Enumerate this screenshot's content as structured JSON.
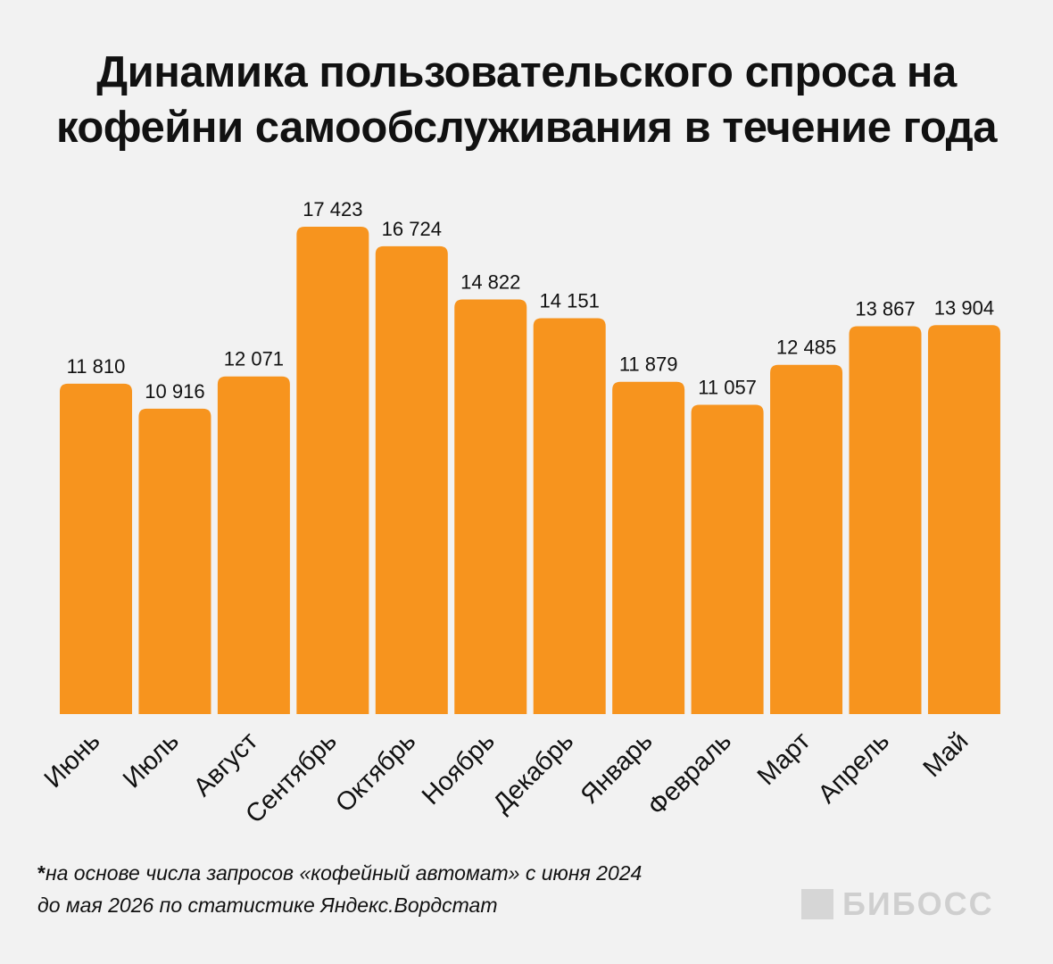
{
  "title": {
    "line1": "Динамика пользовательского спроса на",
    "line2": "кофейни самообслуживания в течение года"
  },
  "colors": {
    "background": "#f2f2f2",
    "bar": "#f7941e",
    "text": "#111111",
    "logo": "#cfcfcf"
  },
  "chart_data": {
    "type": "bar",
    "title": "Динамика пользовательского спроса на кофейни самообслуживания в течение года",
    "categories": [
      "Июнь",
      "Июль",
      "Август",
      "Сентябрь",
      "Октябрь",
      "Ноябрь",
      "Декабрь",
      "Январь",
      "Февраль",
      "Март",
      "Апрель",
      "Май"
    ],
    "values": [
      11810,
      10916,
      12071,
      17423,
      16724,
      14822,
      14151,
      11879,
      11057,
      12485,
      13867,
      13904
    ],
    "value_labels": [
      "11 810",
      "10 916",
      "12 071",
      "17 423",
      "16 724",
      "14 822",
      "14 151",
      "11 879",
      "11 057",
      "12 485",
      "13 867",
      "13 904"
    ],
    "xlabel": "",
    "ylabel": "",
    "ylim": [
      0,
      17423
    ],
    "grid": false,
    "legend": "none"
  },
  "footnote": {
    "star": "*",
    "line1": "на основе числа запросов «кофейный автомат» с июня 2024",
    "line2": "до мая 2026 по статистике Яндекс.Вордстат"
  },
  "logo": {
    "text": "БИБОСС"
  }
}
